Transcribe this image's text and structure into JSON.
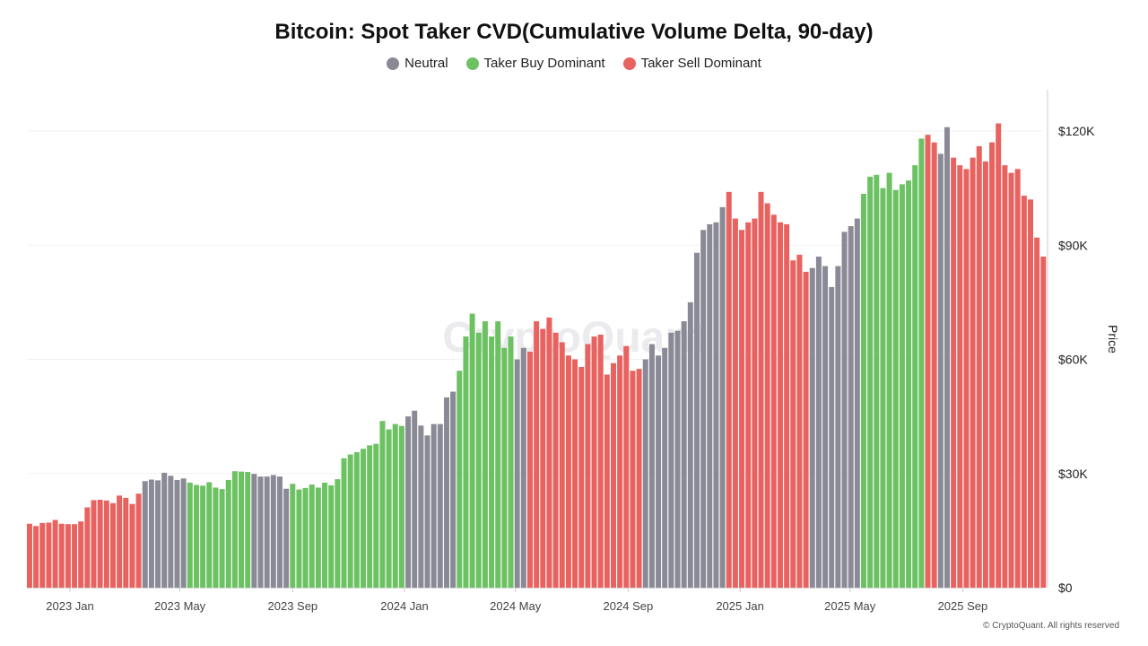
{
  "chart_data": {
    "type": "bar",
    "title": "Bitcoin: Spot Taker CVD(Cumulative Volume Delta, 90-day)",
    "ylabel": "Price",
    "ylim": [
      0,
      130000
    ],
    "y_ticks": [
      {
        "v": 0,
        "label": "$0"
      },
      {
        "v": 30000,
        "label": "$30K"
      },
      {
        "v": 60000,
        "label": "$60K"
      },
      {
        "v": 90000,
        "label": "$90K"
      },
      {
        "v": 120000,
        "label": "$120K"
      }
    ],
    "x_ticks": [
      {
        "d": "2023-01-01",
        "label": "2023 Jan"
      },
      {
        "d": "2023-05-01",
        "label": "2023 May"
      },
      {
        "d": "2023-09-01",
        "label": "2023 Sep"
      },
      {
        "d": "2024-01-01",
        "label": "2024 Jan"
      },
      {
        "d": "2024-05-01",
        "label": "2024 May"
      },
      {
        "d": "2024-09-01",
        "label": "2024 Sep"
      },
      {
        "d": "2025-01-01",
        "label": "2025 Jan"
      },
      {
        "d": "2025-05-01",
        "label": "2025 May"
      },
      {
        "d": "2025-09-01",
        "label": "2025 Sep"
      }
    ],
    "legend": [
      {
        "key": "neutral",
        "name": "Neutral",
        "color": "#8a8a96"
      },
      {
        "key": "buy",
        "name": "Taker Buy Dominant",
        "color": "#6cc262"
      },
      {
        "key": "sell",
        "name": "Taker Sell Dominant",
        "color": "#e8625f"
      }
    ],
    "legend_position": "top-center",
    "grid": true,
    "regimes": [
      {
        "start": "2022-11-15",
        "regime": "sell"
      },
      {
        "start": "2023-03-20",
        "regime": "neutral"
      },
      {
        "start": "2023-05-09",
        "regime": "buy"
      },
      {
        "start": "2023-07-15",
        "regime": "neutral"
      },
      {
        "start": "2023-08-28",
        "regime": "buy"
      },
      {
        "start": "2024-01-01",
        "regime": "neutral"
      },
      {
        "start": "2024-02-25",
        "regime": "buy"
      },
      {
        "start": "2024-04-26",
        "regime": "neutral"
      },
      {
        "start": "2024-05-10",
        "regime": "sell"
      },
      {
        "start": "2024-09-13",
        "regime": "neutral"
      },
      {
        "start": "2024-12-17",
        "regime": "sell"
      },
      {
        "start": "2025-03-18",
        "regime": "neutral"
      },
      {
        "start": "2025-05-08",
        "regime": "buy"
      },
      {
        "start": "2025-07-19",
        "regime": "sell"
      },
      {
        "start": "2025-08-04",
        "regime": "neutral"
      },
      {
        "start": "2025-08-19",
        "regime": "sell"
      }
    ],
    "x_start": "2022-11-15",
    "x_step_days": 7,
    "price_k": [
      16.8,
      16.2,
      17.0,
      17.1,
      17.8,
      16.8,
      16.7,
      16.7,
      17.4,
      21.1,
      23.0,
      23.1,
      22.9,
      22.2,
      24.2,
      23.6,
      22.0,
      24.7,
      28.0,
      28.4,
      28.2,
      30.2,
      29.4,
      28.3,
      28.7,
      27.6,
      27.0,
      26.8,
      27.7,
      26.3,
      25.9,
      28.3,
      30.6,
      30.5,
      30.4,
      29.9,
      29.2,
      29.2,
      29.6,
      29.2,
      26.0,
      27.3,
      25.8,
      26.2,
      27.1,
      26.3,
      27.6,
      26.9,
      28.5,
      34.0,
      35.0,
      35.6,
      36.5,
      37.4,
      37.8,
      43.8,
      41.6,
      43.0,
      42.5,
      45.0,
      46.5,
      42.6,
      40.0,
      43.0,
      43.0,
      50.0,
      51.5,
      57.0,
      66.0,
      72.0,
      67.0,
      70.0,
      66.0,
      70.0,
      63.0,
      66.0,
      60.0,
      63.0,
      62.0,
      70.0,
      68.0,
      71.0,
      67.0,
      64.5,
      61.0,
      60.0,
      58.0,
      64.0,
      66.0,
      66.5,
      56.0,
      59.0,
      61.0,
      63.5,
      57.0,
      57.5,
      60.0,
      64.0,
      61.0,
      63.0,
      67.0,
      67.5,
      70.0,
      75.0,
      88.0,
      94.0,
      95.5,
      96.0,
      100.0,
      104.0,
      97.0,
      94.0,
      96.0,
      97.0,
      104.0,
      101.0,
      98.0,
      96.0,
      95.5,
      86.0,
      87.5,
      83.0,
      84.0,
      87.0,
      84.5,
      79.0,
      84.5,
      93.5,
      95.0,
      97.0,
      103.5,
      108.0,
      108.5,
      105.0,
      109.0,
      104.5,
      106.0,
      107.0,
      111.0,
      118.0,
      119.0,
      117.0,
      114.0,
      121.0,
      113.0,
      111.0,
      110.0,
      113.0,
      116.0,
      112.0,
      117.0,
      122.0,
      111.0,
      109.0,
      110.0,
      103.0,
      102.0,
      92.0,
      87.0
    ]
  },
  "watermark": "CryptoQuant",
  "footer": "© CryptoQuant. All rights reserved"
}
